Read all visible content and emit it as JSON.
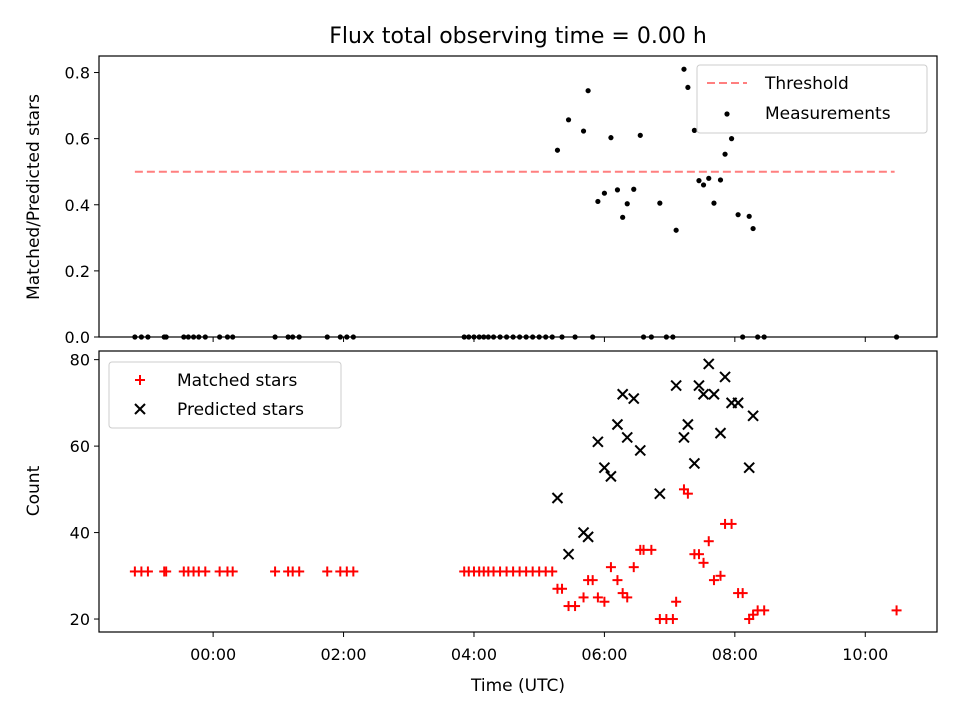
{
  "chart_data": [
    {
      "type": "scatter",
      "title": "Flux total observing time = 0.00 h",
      "ylabel": "Matched/Predicted stars",
      "xlabel": "",
      "x_unit": "hours (UTC, relative to 00:00)",
      "xlim": [
        -1.75,
        11.1
      ],
      "ylim": [
        0,
        0.85
      ],
      "yticks": [
        0.0,
        0.2,
        0.4,
        0.6,
        0.8
      ],
      "ytick_labels": [
        "0.0",
        "0.2",
        "0.4",
        "0.6",
        "0.8"
      ],
      "threshold": {
        "name": "Threshold",
        "y": 0.5,
        "x": [
          -1.2,
          10.45
        ],
        "color": "#ff7f7f"
      },
      "legend": {
        "loc": "top-right",
        "entries": [
          "Threshold",
          "Measurements"
        ]
      },
      "series": [
        {
          "name": "Measurements",
          "color": "#000000",
          "x": [
            -1.2,
            -1.1,
            -1.0,
            -0.75,
            -0.72,
            -0.45,
            -0.38,
            -0.3,
            -0.22,
            -0.12,
            0.1,
            0.22,
            0.3,
            0.95,
            1.15,
            1.22,
            1.32,
            1.75,
            1.95,
            2.05,
            2.15,
            3.85,
            3.92,
            4.0,
            4.08,
            4.15,
            4.22,
            4.3,
            4.4,
            4.5,
            4.6,
            4.7,
            4.8,
            4.9,
            5.0,
            5.1,
            5.2,
            5.28,
            5.35,
            5.45,
            5.55,
            5.68,
            5.75,
            5.82,
            5.9,
            6.0,
            6.1,
            6.2,
            6.28,
            6.35,
            6.45,
            6.55,
            6.6,
            6.72,
            6.85,
            6.95,
            7.05,
            7.1,
            7.22,
            7.28,
            7.38,
            7.45,
            7.52,
            7.6,
            7.68,
            7.78,
            7.85,
            7.95,
            8.05,
            8.12,
            8.22,
            8.28,
            8.35,
            8.45,
            10.48
          ],
          "y": [
            0,
            0,
            0,
            0,
            0,
            0,
            0,
            0,
            0,
            0,
            0,
            0,
            0,
            0,
            0,
            0,
            0,
            0,
            0,
            0,
            0,
            0,
            0,
            0,
            0,
            0,
            0,
            0,
            0,
            0,
            0,
            0,
            0,
            0,
            0,
            0,
            0,
            0.565,
            0,
            0.657,
            0,
            0.623,
            0.745,
            0,
            0.41,
            0.435,
            0.603,
            0.445,
            0.362,
            0.403,
            0.447,
            0.61,
            0,
            0,
            0.405,
            0,
            0,
            0.323,
            0.81,
            0.755,
            0.625,
            0.473,
            0.46,
            0.48,
            0.405,
            0.475,
            0.553,
            0.6,
            0.37,
            0,
            0.365,
            0.328,
            0,
            0,
            0
          ]
        }
      ]
    },
    {
      "type": "scatter",
      "title": "",
      "ylabel": "Count",
      "xlabel": "Time (UTC)",
      "xlim": [
        -1.75,
        11.1
      ],
      "ylim": [
        17,
        82
      ],
      "yticks": [
        20,
        40,
        60,
        80
      ],
      "ytick_labels": [
        "20",
        "40",
        "60",
        "80"
      ],
      "xticks": [
        0,
        2,
        4,
        6,
        8,
        10
      ],
      "xtick_labels": [
        "00:00",
        "02:00",
        "04:00",
        "06:00",
        "08:00",
        "10:00"
      ],
      "legend": {
        "loc": "top-left",
        "entries": [
          "Matched stars",
          "Predicted stars"
        ]
      },
      "series": [
        {
          "name": "Matched stars",
          "marker": "plus",
          "color": "#ff0000",
          "x": [
            -1.2,
            -1.1,
            -1.0,
            -0.75,
            -0.72,
            -0.45,
            -0.38,
            -0.3,
            -0.22,
            -0.12,
            0.1,
            0.22,
            0.3,
            0.95,
            1.15,
            1.22,
            1.32,
            1.75,
            1.95,
            2.05,
            2.15,
            3.85,
            3.92,
            4.0,
            4.08,
            4.15,
            4.22,
            4.3,
            4.4,
            4.5,
            4.6,
            4.7,
            4.8,
            4.9,
            5.0,
            5.1,
            5.2,
            5.28,
            5.35,
            5.45,
            5.55,
            5.68,
            5.75,
            5.82,
            5.9,
            6.0,
            6.1,
            6.2,
            6.28,
            6.35,
            6.45,
            6.55,
            6.6,
            6.72,
            6.85,
            6.95,
            7.05,
            7.1,
            7.22,
            7.28,
            7.38,
            7.45,
            7.52,
            7.6,
            7.68,
            7.78,
            7.85,
            7.95,
            8.05,
            8.12,
            8.22,
            8.28,
            8.35,
            8.45,
            10.48
          ],
          "y": [
            31,
            31,
            31,
            31,
            31,
            31,
            31,
            31,
            31,
            31,
            31,
            31,
            31,
            31,
            31,
            31,
            31,
            31,
            31,
            31,
            31,
            31,
            31,
            31,
            31,
            31,
            31,
            31,
            31,
            31,
            31,
            31,
            31,
            31,
            31,
            31,
            31,
            27,
            27,
            23,
            23,
            25,
            29,
            29,
            25,
            24,
            32,
            29,
            26,
            25,
            32,
            36,
            36,
            36,
            20,
            20,
            20,
            24,
            50,
            49,
            35,
            35,
            33,
            38,
            29,
            30,
            42,
            42,
            26,
            26,
            20,
            21,
            22,
            22,
            22
          ]
        },
        {
          "name": "Predicted stars",
          "marker": "x",
          "color": "#000000",
          "x": [
            5.28,
            5.45,
            5.68,
            5.75,
            5.9,
            6.0,
            6.1,
            6.2,
            6.28,
            6.35,
            6.45,
            6.55,
            6.85,
            7.1,
            7.22,
            7.28,
            7.38,
            7.45,
            7.52,
            7.6,
            7.68,
            7.78,
            7.85,
            7.95,
            8.05,
            8.22,
            8.28
          ],
          "y": [
            48,
            35,
            40,
            39,
            61,
            55,
            53,
            65,
            72,
            62,
            71,
            59,
            49,
            74,
            62,
            65,
            56,
            74,
            72,
            79,
            72,
            63,
            76,
            70,
            70,
            55,
            67
          ]
        }
      ]
    }
  ]
}
